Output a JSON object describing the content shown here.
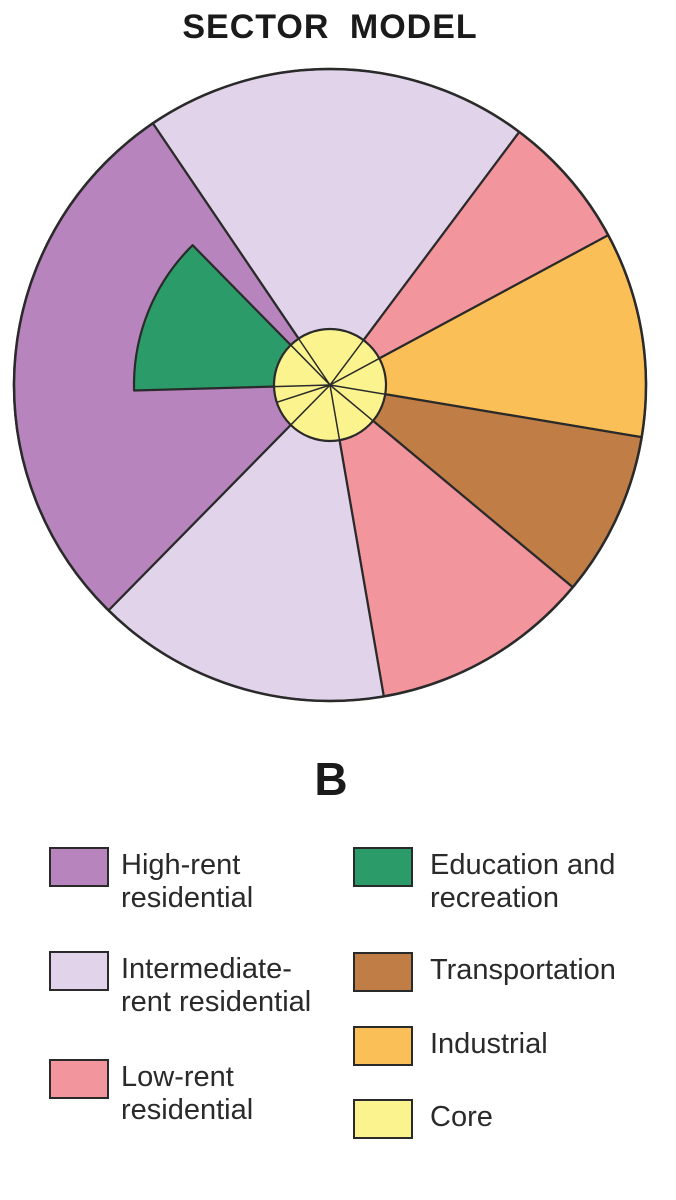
{
  "title": "SECTOR  MODEL",
  "figure_letter": "B",
  "colors": {
    "high_rent": "#b784bd",
    "intermediate": "#e0d3ea",
    "low_rent": "#f2959c",
    "education": "#2b9b6a",
    "transportation": "#c07d46",
    "industrial": "#fbbf58",
    "core": "#fbf48e",
    "outline": "#2a2a2a"
  },
  "legend": {
    "high_rent": {
      "line1": "High-rent",
      "line2": "residential"
    },
    "intermediate": {
      "line1": "Intermediate-",
      "line2": "rent residential"
    },
    "low_rent": {
      "line1": "Low-rent",
      "line2": "residential"
    },
    "education": {
      "line1": "Education and",
      "line2": "recreation"
    },
    "transportation": {
      "line1": "Transportation"
    },
    "industrial": {
      "line1": "Industrial"
    },
    "core": {
      "line1": "Core"
    }
  }
}
